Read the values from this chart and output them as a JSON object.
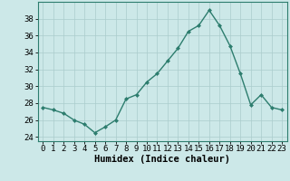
{
  "x": [
    0,
    1,
    2,
    3,
    4,
    5,
    6,
    7,
    8,
    9,
    10,
    11,
    12,
    13,
    14,
    15,
    16,
    17,
    18,
    19,
    20,
    21,
    22,
    23
  ],
  "y": [
    27.5,
    27.2,
    26.8,
    26.0,
    25.5,
    24.5,
    25.2,
    26.0,
    28.5,
    29.0,
    30.5,
    31.5,
    33.0,
    34.5,
    36.5,
    37.2,
    39.0,
    37.2,
    34.8,
    31.5,
    27.8,
    29.0,
    27.5,
    27.2
  ],
  "line_color": "#2d7d6e",
  "marker": "D",
  "marker_size": 2.0,
  "bg_color": "#cce8e8",
  "grid_color": "#aacccc",
  "xlabel": "Humidex (Indice chaleur)",
  "xlabel_fontsize": 7.5,
  "tick_fontsize": 6.5,
  "ylim": [
    23.5,
    40
  ],
  "yticks": [
    24,
    26,
    28,
    30,
    32,
    34,
    36,
    38
  ],
  "xlim": [
    -0.5,
    23.5
  ],
  "xticks": [
    0,
    1,
    2,
    3,
    4,
    5,
    6,
    7,
    8,
    9,
    10,
    11,
    12,
    13,
    14,
    15,
    16,
    17,
    18,
    19,
    20,
    21,
    22,
    23
  ],
  "line_width": 1.0,
  "spine_color": "#2d7d6e"
}
